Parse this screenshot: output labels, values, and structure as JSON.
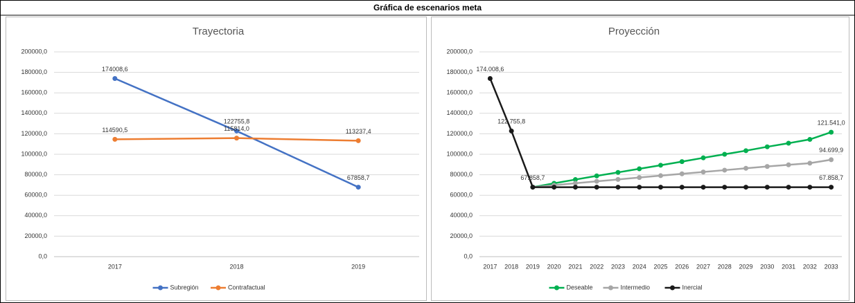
{
  "header": {
    "title": "Gráfica de escenarios meta"
  },
  "chart_data": [
    {
      "type": "line",
      "title": "Trayectoria",
      "categories": [
        "2017",
        "2018",
        "2019"
      ],
      "series": [
        {
          "name": "Subregión",
          "color": "#4472c4",
          "values": [
            174008.6,
            122755.8,
            67858.7
          ],
          "value_labels": [
            "174008,6",
            "122755,8",
            "67858,7"
          ]
        },
        {
          "name": "Contrafactual",
          "color": "#ed7d31",
          "values": [
            114590.5,
            115814.0,
            113237.4
          ],
          "value_labels": [
            "114590,5",
            "115814,0",
            "113237,4"
          ]
        }
      ],
      "ylim": [
        0,
        200000
      ],
      "yticks": [
        {
          "value": 0,
          "label": "0,0"
        },
        {
          "value": 20000,
          "label": "20000,0"
        },
        {
          "value": 40000,
          "label": "40000,0"
        },
        {
          "value": 60000,
          "label": "60000,0"
        },
        {
          "value": 80000,
          "label": "80000,0"
        },
        {
          "value": 100000,
          "label": "100000,0"
        },
        {
          "value": 120000,
          "label": "120000,0"
        },
        {
          "value": 140000,
          "label": "140000,0"
        },
        {
          "value": 160000,
          "label": "160000,0"
        },
        {
          "value": 180000,
          "label": "180000,0"
        },
        {
          "value": 200000,
          "label": "200000,0"
        }
      ],
      "grid": true,
      "legend": "bottom"
    },
    {
      "type": "line",
      "title": "Proyección",
      "categories": [
        "2017",
        "2018",
        "2019",
        "2020",
        "2021",
        "2022",
        "2023",
        "2024",
        "2025",
        "2026",
        "2027",
        "2028",
        "2029",
        "2030",
        "2031",
        "2032",
        "2033"
      ],
      "series": [
        {
          "name": "Deseable",
          "color": "#00b050",
          "values": [
            null,
            null,
            67858.7,
            71600,
            75300,
            78900,
            82300,
            85800,
            89300,
            92800,
            96500,
            100000,
            103500,
            107300,
            110800,
            114500,
            121541.0
          ],
          "value_labels": [
            null,
            null,
            null,
            null,
            null,
            null,
            null,
            null,
            null,
            null,
            null,
            null,
            null,
            null,
            null,
            null,
            "121.541,0"
          ]
        },
        {
          "name": "Intermedio",
          "color": "#a6a6a6",
          "values": [
            null,
            null,
            67858.7,
            69800,
            71700,
            73600,
            75400,
            77300,
            79100,
            80900,
            82700,
            84500,
            86300,
            88100,
            89700,
            91300,
            94699.9
          ],
          "value_labels": [
            null,
            null,
            null,
            null,
            null,
            null,
            null,
            null,
            null,
            null,
            null,
            null,
            null,
            null,
            null,
            null,
            "94.699,9"
          ]
        },
        {
          "name": "Inercial",
          "color": "#1a1a1a",
          "values": [
            174008.6,
            122755.8,
            67858.7,
            67858.7,
            67858.7,
            67858.7,
            67858.7,
            67858.7,
            67858.7,
            67858.7,
            67858.7,
            67858.7,
            67858.7,
            67858.7,
            67858.7,
            67858.7,
            67858.7
          ],
          "value_labels": [
            "174.008,6",
            "122.755,8",
            "67.858,7",
            null,
            null,
            null,
            null,
            null,
            null,
            null,
            null,
            null,
            null,
            null,
            null,
            null,
            "67.858,7"
          ]
        }
      ],
      "ylim": [
        0,
        200000
      ],
      "yticks": [
        {
          "value": 0,
          "label": "0,0"
        },
        {
          "value": 20000,
          "label": "20000,0"
        },
        {
          "value": 40000,
          "label": "40000,0"
        },
        {
          "value": 60000,
          "label": "60000,0"
        },
        {
          "value": 80000,
          "label": "80000,0"
        },
        {
          "value": 100000,
          "label": "100000,0"
        },
        {
          "value": 120000,
          "label": "120000,0"
        },
        {
          "value": 140000,
          "label": "140000,0"
        },
        {
          "value": 160000,
          "label": "160000,0"
        },
        {
          "value": 180000,
          "label": "180000,0"
        },
        {
          "value": 200000,
          "label": "200000,0"
        }
      ],
      "grid": true,
      "legend": "bottom"
    }
  ]
}
